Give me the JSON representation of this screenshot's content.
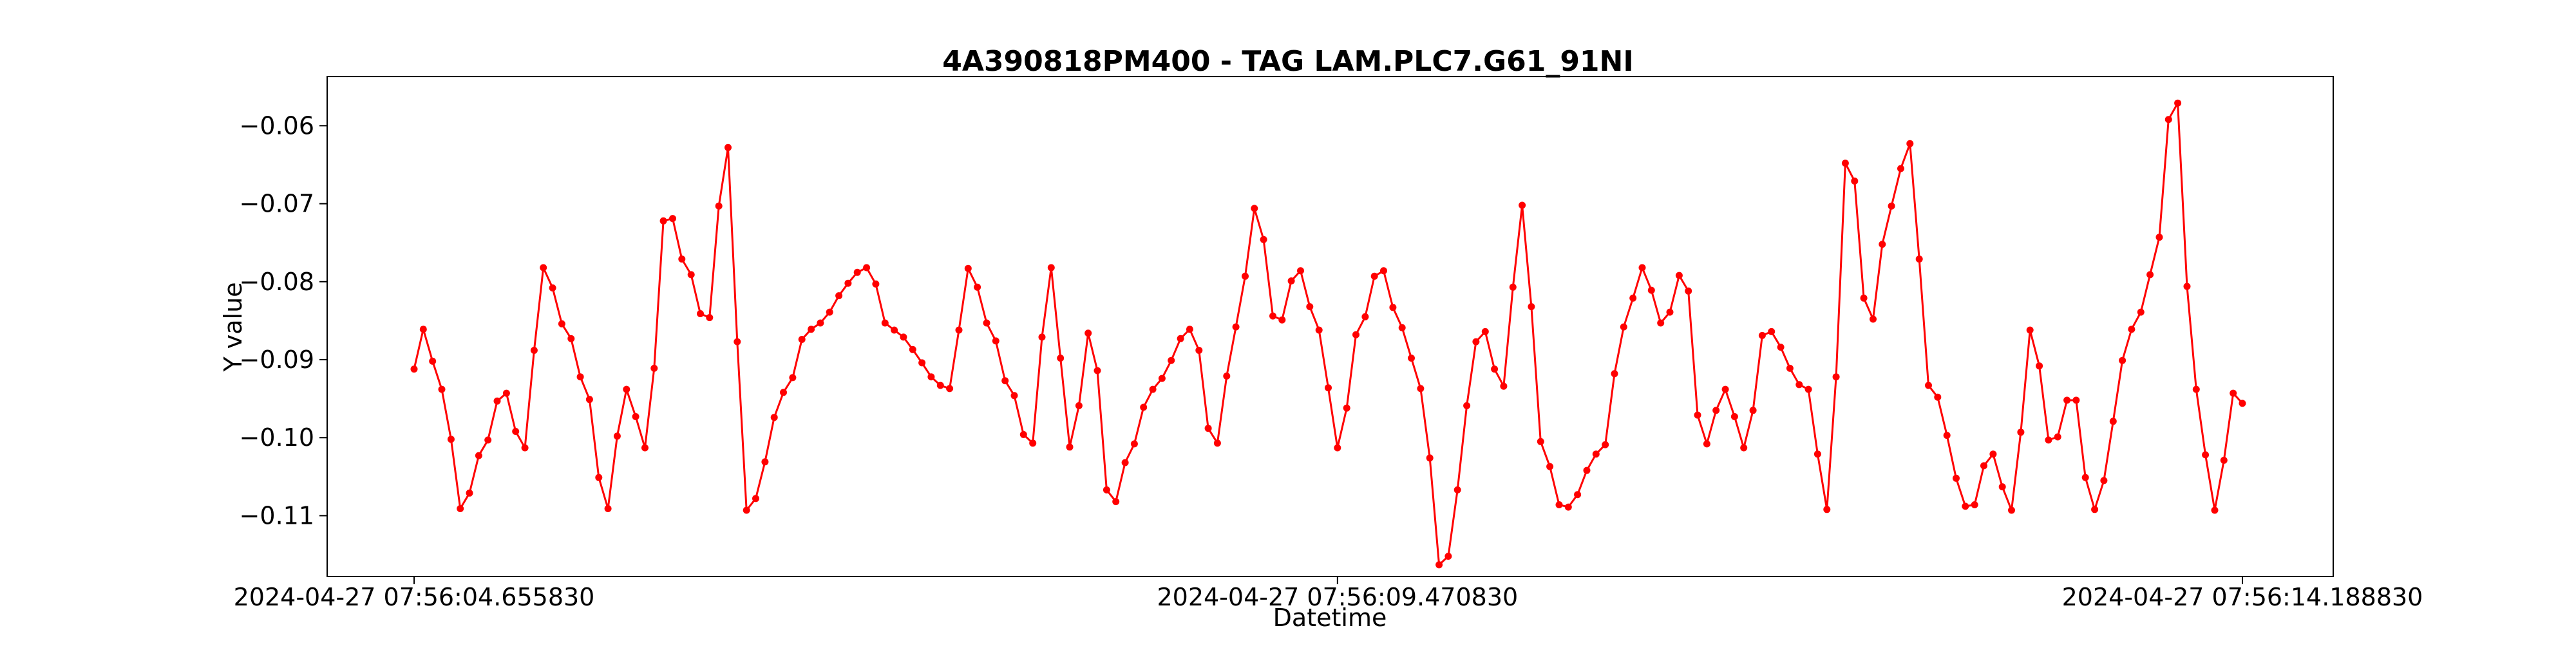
{
  "chart_data": {
    "type": "line",
    "title": "4A390818PM400 - TAG LAM.PLC7.G61_91NI",
    "xlabel": "Datetime",
    "ylabel": "Y value",
    "x_ticks": [
      "2024-04-27 07:56:04.655830",
      "2024-04-27 07:56:09.470830",
      "2024-04-27 07:56:14.188830"
    ],
    "y_ticks": [
      -0.06,
      -0.07,
      -0.08,
      -0.09,
      -0.1,
      -0.11
    ],
    "y_tick_labels": [
      "−0.06",
      "−0.07",
      "−0.08",
      "−0.09",
      "−0.10",
      "−0.11"
    ],
    "ylim": [
      -0.1178,
      -0.0537
    ],
    "grid": false,
    "series": [
      {
        "color": "#ff0000",
        "marker": "circle",
        "values": [
          -0.0912,
          -0.0861,
          -0.0902,
          -0.0938,
          -0.1002,
          -0.1091,
          -0.1071,
          -0.1023,
          -0.1003,
          -0.0953,
          -0.0943,
          -0.0992,
          -0.1013,
          -0.0888,
          -0.0782,
          -0.0808,
          -0.0854,
          -0.0873,
          -0.0922,
          -0.0951,
          -0.1051,
          -0.1091,
          -0.0998,
          -0.0938,
          -0.0973,
          -0.1013,
          -0.0911,
          -0.0722,
          -0.0719,
          -0.0771,
          -0.0791,
          -0.0841,
          -0.0846,
          -0.0703,
          -0.0628,
          -0.0877,
          -0.1093,
          -0.1078,
          -0.1031,
          -0.0974,
          -0.0942,
          -0.0923,
          -0.0874,
          -0.0861,
          -0.0853,
          -0.0839,
          -0.0818,
          -0.0802,
          -0.0788,
          -0.0782,
          -0.0803,
          -0.0853,
          -0.0862,
          -0.0871,
          -0.0887,
          -0.0904,
          -0.0922,
          -0.0933,
          -0.0937,
          -0.0862,
          -0.0783,
          -0.0807,
          -0.0853,
          -0.0876,
          -0.0927,
          -0.0946,
          -0.0996,
          -0.1007,
          -0.0871,
          -0.0782,
          -0.0898,
          -0.1012,
          -0.0959,
          -0.0866,
          -0.0914,
          -0.1067,
          -0.1082,
          -0.1032,
          -0.1008,
          -0.0961,
          -0.0938,
          -0.0924,
          -0.0901,
          -0.0873,
          -0.0861,
          -0.0888,
          -0.0988,
          -0.1007,
          -0.0921,
          -0.0858,
          -0.0793,
          -0.0706,
          -0.0746,
          -0.0844,
          -0.0849,
          -0.0799,
          -0.0786,
          -0.0832,
          -0.0862,
          -0.0936,
          -0.1013,
          -0.0962,
          -0.0868,
          -0.0845,
          -0.0793,
          -0.0786,
          -0.0833,
          -0.0859,
          -0.0898,
          -0.0937,
          -0.1026,
          -0.1163,
          -0.1152,
          -0.1067,
          -0.0959,
          -0.0877,
          -0.0864,
          -0.0912,
          -0.0934,
          -0.0807,
          -0.0702,
          -0.0832,
          -0.1005,
          -0.1037,
          -0.1086,
          -0.1089,
          -0.1073,
          -0.1042,
          -0.1021,
          -0.1009,
          -0.0918,
          -0.0858,
          -0.0821,
          -0.0782,
          -0.0811,
          -0.0853,
          -0.0839,
          -0.0792,
          -0.0812,
          -0.0971,
          -0.1008,
          -0.0965,
          -0.0938,
          -0.0973,
          -0.1013,
          -0.0965,
          -0.0869,
          -0.0864,
          -0.0884,
          -0.0911,
          -0.0932,
          -0.0938,
          -0.1021,
          -0.1092,
          -0.0922,
          -0.0648,
          -0.0671,
          -0.0821,
          -0.0848,
          -0.0752,
          -0.0703,
          -0.0655,
          -0.0623,
          -0.0771,
          -0.0933,
          -0.0948,
          -0.0997,
          -0.1052,
          -0.1088,
          -0.1086,
          -0.1036,
          -0.1021,
          -0.1063,
          -0.1093,
          -0.0993,
          -0.0862,
          -0.0908,
          -0.1003,
          -0.0999,
          -0.0952,
          -0.0952,
          -0.1051,
          -0.1092,
          -0.1055,
          -0.0979,
          -0.0901,
          -0.0861,
          -0.0839,
          -0.0791,
          -0.0743,
          -0.0592,
          -0.0571,
          -0.0806,
          -0.0938,
          -0.1022,
          -0.1093,
          -0.1029,
          -0.0943,
          -0.0956
        ]
      }
    ]
  }
}
